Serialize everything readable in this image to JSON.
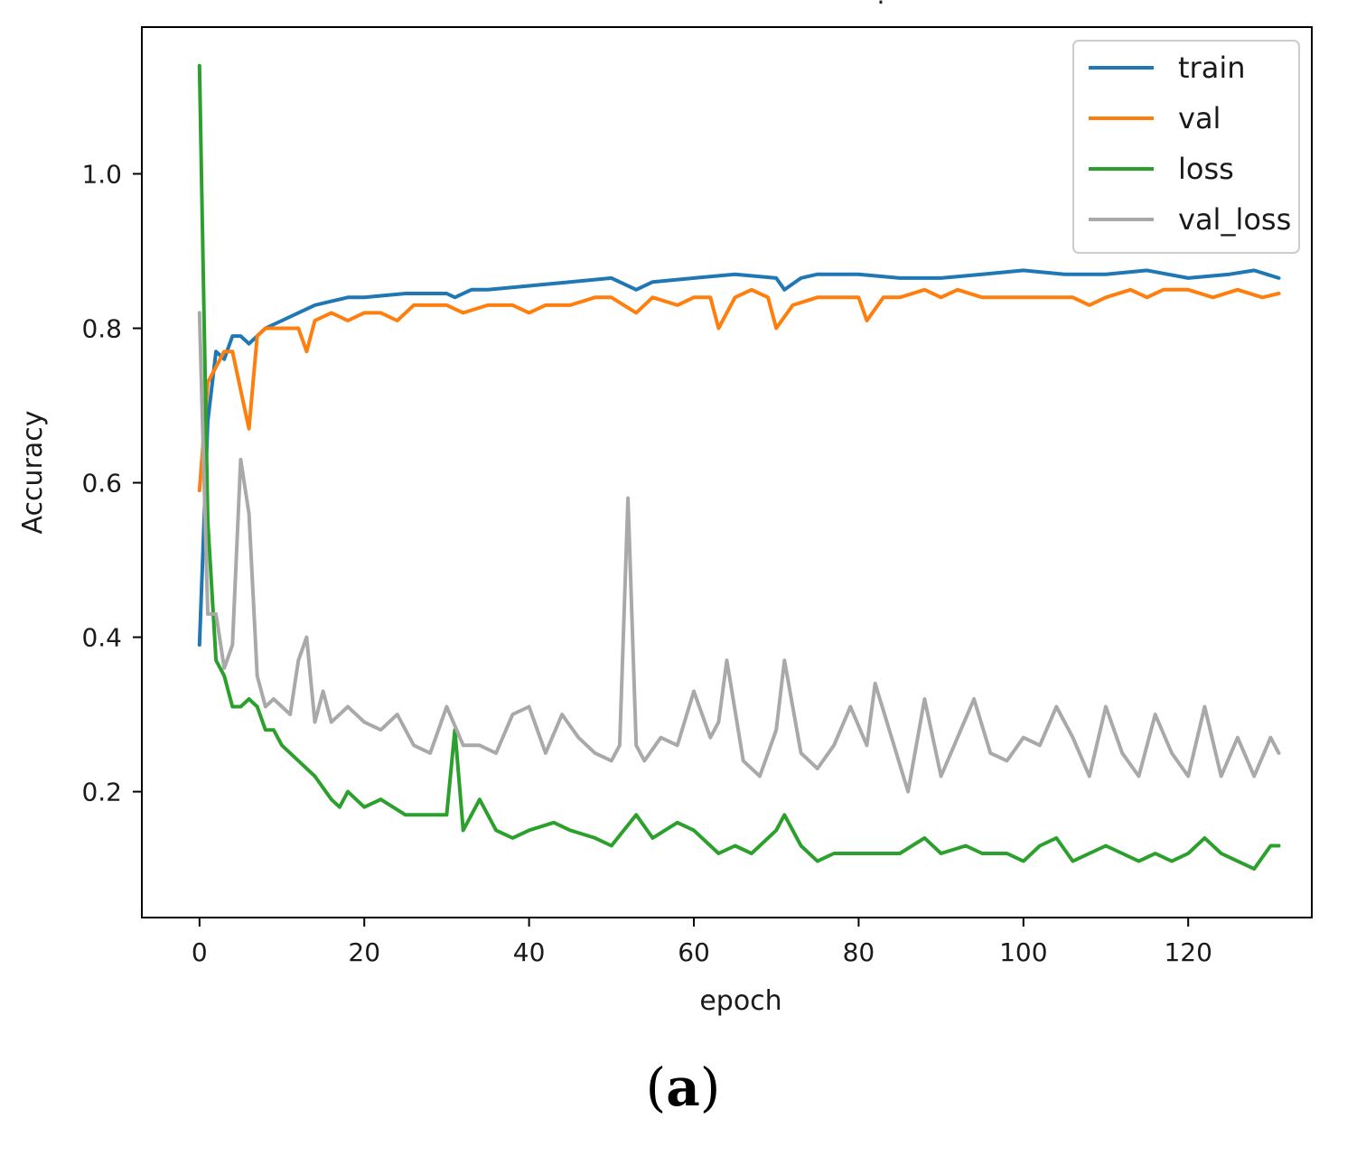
{
  "chart_data": {
    "type": "line",
    "title": "",
    "xlabel": "epoch",
    "ylabel": "Accuracy",
    "xlim": [
      -7,
      135
    ],
    "ylim": [
      0.037,
      1.19
    ],
    "xticks": [
      0,
      20,
      40,
      60,
      80,
      100,
      120
    ],
    "yticks": [
      0.2,
      0.4,
      0.6,
      0.8,
      1.0
    ],
    "ytick_labels": [
      "0.2",
      "0.4",
      "0.6",
      "0.8",
      "1.0"
    ],
    "legend_position": "top-right",
    "series": [
      {
        "name": "train",
        "color": "#1f77b4",
        "x": [
          0,
          1,
          2,
          3,
          4,
          5,
          6,
          7,
          8,
          10,
          12,
          14,
          16,
          18,
          20,
          25,
          30,
          31,
          33,
          35,
          40,
          45,
          50,
          53,
          55,
          60,
          65,
          70,
          71,
          73,
          75,
          80,
          85,
          90,
          95,
          100,
          105,
          110,
          115,
          120,
          125,
          128,
          131
        ],
        "y": [
          0.39,
          0.68,
          0.77,
          0.76,
          0.79,
          0.79,
          0.78,
          0.79,
          0.8,
          0.81,
          0.82,
          0.83,
          0.835,
          0.84,
          0.84,
          0.845,
          0.845,
          0.84,
          0.85,
          0.85,
          0.855,
          0.86,
          0.865,
          0.85,
          0.86,
          0.865,
          0.87,
          0.865,
          0.85,
          0.865,
          0.87,
          0.87,
          0.865,
          0.865,
          0.87,
          0.875,
          0.87,
          0.87,
          0.875,
          0.865,
          0.87,
          0.875,
          0.865
        ]
      },
      {
        "name": "val",
        "color": "#ff7f0e",
        "x": [
          0,
          1,
          2,
          3,
          4,
          5,
          6,
          7,
          8,
          10,
          12,
          13,
          14,
          16,
          18,
          20,
          22,
          24,
          26,
          28,
          30,
          32,
          35,
          38,
          40,
          42,
          45,
          48,
          50,
          53,
          55,
          58,
          60,
          62,
          63,
          65,
          67,
          69,
          70,
          72,
          75,
          78,
          80,
          81,
          83,
          85,
          88,
          90,
          92,
          95,
          98,
          100,
          103,
          106,
          108,
          110,
          113,
          115,
          117,
          120,
          123,
          126,
          129,
          131
        ],
        "y": [
          0.59,
          0.73,
          0.75,
          0.77,
          0.77,
          0.72,
          0.67,
          0.79,
          0.8,
          0.8,
          0.8,
          0.77,
          0.81,
          0.82,
          0.81,
          0.82,
          0.82,
          0.81,
          0.83,
          0.83,
          0.83,
          0.82,
          0.83,
          0.83,
          0.82,
          0.83,
          0.83,
          0.84,
          0.84,
          0.82,
          0.84,
          0.83,
          0.84,
          0.84,
          0.8,
          0.84,
          0.85,
          0.84,
          0.8,
          0.83,
          0.84,
          0.84,
          0.84,
          0.81,
          0.84,
          0.84,
          0.85,
          0.84,
          0.85,
          0.84,
          0.84,
          0.84,
          0.84,
          0.84,
          0.83,
          0.84,
          0.85,
          0.84,
          0.85,
          0.85,
          0.84,
          0.85,
          0.84,
          0.845
        ]
      },
      {
        "name": "loss",
        "color": "#2ca02c",
        "x": [
          0,
          1,
          2,
          3,
          4,
          5,
          6,
          7,
          8,
          9,
          10,
          12,
          14,
          16,
          17,
          18,
          20,
          22,
          25,
          28,
          30,
          31,
          32,
          34,
          36,
          38,
          40,
          43,
          45,
          48,
          50,
          53,
          55,
          58,
          60,
          62,
          63,
          65,
          67,
          70,
          71,
          73,
          75,
          77,
          80,
          83,
          85,
          88,
          90,
          93,
          95,
          98,
          100,
          102,
          104,
          106,
          108,
          110,
          112,
          114,
          116,
          118,
          120,
          122,
          124,
          126,
          128,
          130,
          131
        ],
        "y": [
          1.14,
          0.55,
          0.37,
          0.35,
          0.31,
          0.31,
          0.32,
          0.31,
          0.28,
          0.28,
          0.26,
          0.24,
          0.22,
          0.19,
          0.18,
          0.2,
          0.18,
          0.19,
          0.17,
          0.17,
          0.17,
          0.28,
          0.15,
          0.19,
          0.15,
          0.14,
          0.15,
          0.16,
          0.15,
          0.14,
          0.13,
          0.17,
          0.14,
          0.16,
          0.15,
          0.13,
          0.12,
          0.13,
          0.12,
          0.15,
          0.17,
          0.13,
          0.11,
          0.12,
          0.12,
          0.12,
          0.12,
          0.14,
          0.12,
          0.13,
          0.12,
          0.12,
          0.11,
          0.13,
          0.14,
          0.11,
          0.12,
          0.13,
          0.12,
          0.11,
          0.12,
          0.11,
          0.12,
          0.14,
          0.12,
          0.11,
          0.1,
          0.13,
          0.13
        ]
      },
      {
        "name": "val_loss",
        "color": "#a9a9a9",
        "x": [
          0,
          1,
          2,
          3,
          4,
          5,
          6,
          7,
          8,
          9,
          10,
          11,
          12,
          13,
          14,
          15,
          16,
          17,
          18,
          20,
          22,
          24,
          26,
          28,
          30,
          32,
          34,
          36,
          38,
          40,
          42,
          44,
          46,
          48,
          50,
          51,
          52,
          53,
          54,
          56,
          58,
          60,
          62,
          63,
          64,
          66,
          68,
          70,
          71,
          73,
          75,
          77,
          79,
          81,
          82,
          84,
          86,
          88,
          90,
          92,
          94,
          96,
          98,
          100,
          102,
          104,
          106,
          108,
          110,
          112,
          114,
          116,
          118,
          120,
          122,
          124,
          126,
          128,
          130,
          131
        ],
        "y": [
          0.82,
          0.43,
          0.43,
          0.36,
          0.39,
          0.63,
          0.56,
          0.35,
          0.31,
          0.32,
          0.31,
          0.3,
          0.37,
          0.4,
          0.29,
          0.33,
          0.29,
          0.3,
          0.31,
          0.29,
          0.28,
          0.3,
          0.26,
          0.25,
          0.31,
          0.26,
          0.26,
          0.25,
          0.3,
          0.31,
          0.25,
          0.3,
          0.27,
          0.25,
          0.24,
          0.26,
          0.58,
          0.26,
          0.24,
          0.27,
          0.26,
          0.33,
          0.27,
          0.29,
          0.37,
          0.24,
          0.22,
          0.28,
          0.37,
          0.25,
          0.23,
          0.26,
          0.31,
          0.26,
          0.34,
          0.27,
          0.2,
          0.32,
          0.22,
          0.27,
          0.32,
          0.25,
          0.24,
          0.27,
          0.26,
          0.31,
          0.27,
          0.22,
          0.31,
          0.25,
          0.22,
          0.3,
          0.25,
          0.22,
          0.31,
          0.22,
          0.27,
          0.22,
          0.27,
          0.25
        ]
      }
    ]
  },
  "caption": {
    "open": "(",
    "letter": "a",
    "close": ")"
  }
}
